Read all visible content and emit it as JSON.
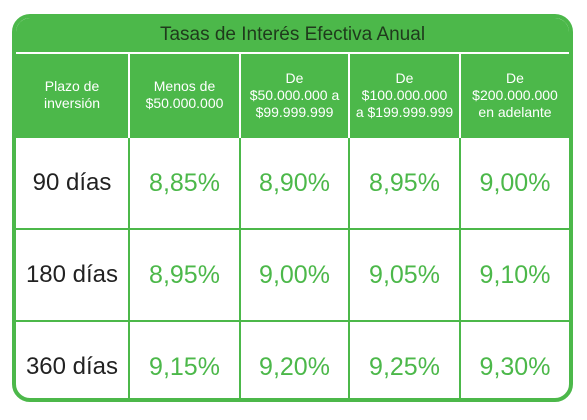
{
  "table": {
    "title": "Tasas de Interés Efectiva Anual",
    "headers": [
      "Plazo de\ninversión",
      "Menos de\n$50.000.000",
      "De\n$50.000.000 a\n$99.999.999",
      "De\n$100.000.000\na $199.999.999",
      "De\n$200.000.000\nen adelante"
    ],
    "rows": [
      [
        "90 días",
        "8,85%",
        "8,90%",
        "8,95%",
        "9,00%"
      ],
      [
        "180 días",
        "8,95%",
        "9,00%",
        "9,05%",
        "9,10%"
      ],
      [
        "360 días",
        "9,15%",
        "9,20%",
        "9,25%",
        "9,30%"
      ]
    ]
  },
  "colors": {
    "accent": "#4cb84a",
    "title_text": "#1f3a1c",
    "term_text": "#222222"
  }
}
